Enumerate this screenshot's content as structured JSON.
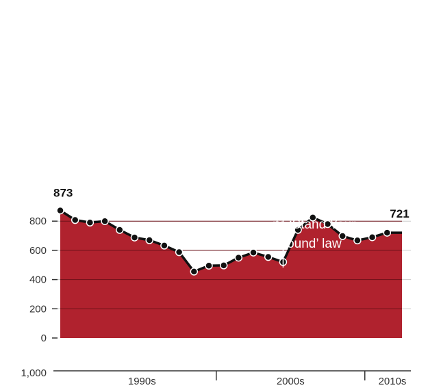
{
  "colors": {
    "area_fill": "#b0222e",
    "line": "#111111",
    "gridline_on_area": "#6e1119",
    "gridline_on_white": "#cccccc",
    "axis": "#333333",
    "annotation_text": "#ffffff"
  },
  "chart_data": {
    "type": "area",
    "title": "",
    "xlabel": "",
    "ylabel": "",
    "grid": true,
    "ylim": [
      0,
      1000
    ],
    "y_ticks": [
      0,
      200,
      400,
      600,
      800,
      1000
    ],
    "y_tick_labels": [
      "0",
      "200",
      "400",
      "600",
      "800",
      "1,000"
    ],
    "x": [
      1989,
      1990,
      1991,
      1992,
      1993,
      1994,
      1995,
      1996,
      1997,
      1998,
      1999,
      2000,
      2001,
      2002,
      2003,
      2004,
      2005,
      2006,
      2007,
      2008,
      2009,
      2010,
      2011,
      2012
    ],
    "series": [
      {
        "values": [
          873,
          808,
          790,
          800,
          740,
          688,
          670,
          633,
          588,
          455,
          495,
          497,
          550,
          585,
          555,
          520,
          740,
          825,
          780,
          698,
          668,
          690,
          721,
          721
        ]
      }
    ],
    "x_decade_labels": [
      {
        "label": "1990s",
        "from": 1990,
        "to": 1999
      },
      {
        "label": "2000s",
        "from": 2000,
        "to": 2009
      },
      {
        "label": "2010s",
        "from": 2010,
        "to": 2012
      }
    ],
    "value_labels": {
      "first": "873",
      "last": "721"
    },
    "annotation": {
      "year": "2005",
      "lines": [
        "Florida enacted",
        "its ‘Stand Your",
        "Ground’ law"
      ],
      "x": 2004
    }
  }
}
